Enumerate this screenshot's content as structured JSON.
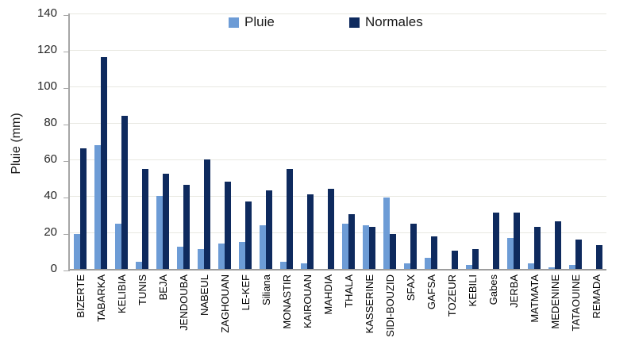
{
  "chart_data": {
    "type": "bar",
    "title": "",
    "xlabel": "",
    "ylabel": "Pluie (mm)",
    "ylim": [
      0,
      140
    ],
    "ytick_step": 20,
    "grid": true,
    "legend_position": "top",
    "categories": [
      "BIZERTE",
      "TABARKA",
      "KELIBIA",
      "TUNIS",
      "BEJA",
      "JENDOUBA",
      "NABEUL",
      "ZAGHOUAN",
      "LE-KEF",
      "Siliana",
      "MONASTIR",
      "KAIROUAN",
      "MAHDIA",
      "THALA",
      "KASSERINE",
      "SIDI-BOUZID",
      "SFAX",
      "GAFSA",
      "TOZEUR",
      "KEBILI",
      "Gabes",
      "JERBA",
      "MATMATA",
      "MEDENINE",
      "TATAOUINE",
      "REMADA"
    ],
    "series": [
      {
        "name": "Pluie",
        "color": "#6D9CD6",
        "values": [
          19,
          68,
          25,
          4,
          40,
          12,
          11,
          14,
          15,
          24,
          4,
          3,
          0,
          25,
          24,
          39,
          3,
          6,
          0,
          2,
          0,
          17,
          3,
          1,
          2,
          0
        ]
      },
      {
        "name": "Normales",
        "color": "#0E2A5E",
        "values": [
          66,
          116,
          84,
          55,
          52,
          46,
          60,
          48,
          37,
          43,
          55,
          41,
          44,
          30,
          23,
          19,
          25,
          18,
          10,
          11,
          31,
          31,
          23,
          26,
          16,
          13
        ]
      }
    ],
    "colors": {
      "axis": "#A6A6A6",
      "gridline": "#E8E8E1",
      "text": "#262626"
    }
  }
}
